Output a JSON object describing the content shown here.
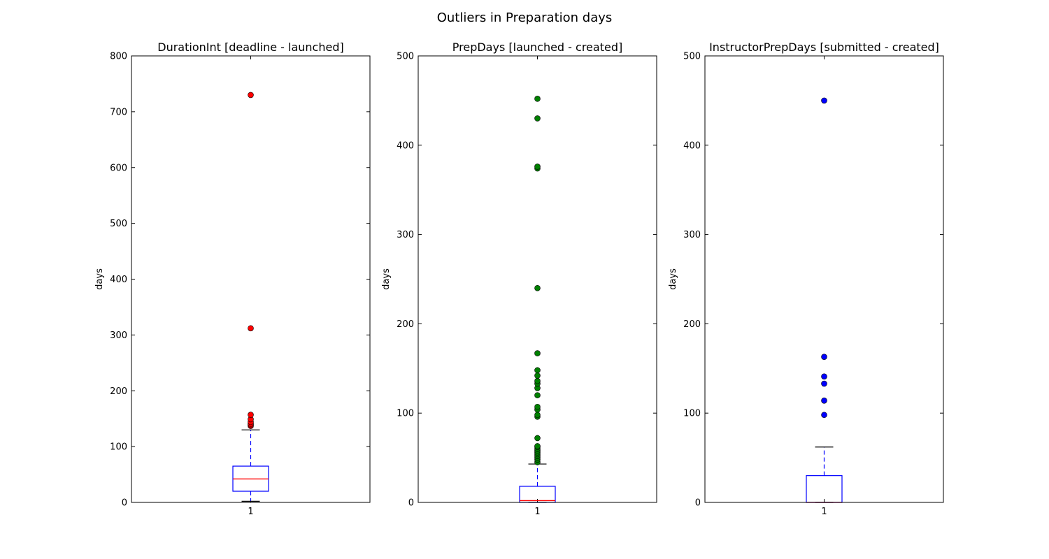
{
  "figure": {
    "suptitle": "Outliers in Preparation days"
  },
  "chart_data": [
    {
      "type": "box",
      "title": "DurationInt [deadline - launched]",
      "ylabel": "days",
      "xticks": [
        "1"
      ],
      "ylim": [
        0,
        800
      ],
      "yticks": [
        0,
        100,
        200,
        300,
        400,
        500,
        600,
        700,
        800
      ],
      "box": {
        "whisker_low": 2,
        "q1": 20,
        "median": 42,
        "q3": 65,
        "whisker_high": 130
      },
      "outliers": [
        137,
        139,
        141,
        144,
        149,
        157,
        312,
        730
      ],
      "outlier_color": "#ff0000"
    },
    {
      "type": "box",
      "title": "PrepDays [launched - created]",
      "ylabel": "days",
      "xticks": [
        "1"
      ],
      "ylim": [
        0,
        500
      ],
      "yticks": [
        0,
        100,
        200,
        300,
        400,
        500
      ],
      "box": {
        "whisker_low": 0,
        "q1": 0,
        "median": 2,
        "q3": 18,
        "whisker_high": 43
      },
      "outliers": [
        45,
        48,
        50,
        52,
        54,
        56,
        58,
        60,
        62,
        63,
        72,
        96,
        98,
        104,
        107,
        120,
        128,
        133,
        136,
        142,
        148,
        167,
        240,
        374,
        376,
        430,
        452
      ],
      "outlier_color": "#008000"
    },
    {
      "type": "box",
      "title": "InstructorPrepDays [submitted - created]",
      "ylabel": "days",
      "xticks": [
        "1"
      ],
      "ylim": [
        0,
        500
      ],
      "yticks": [
        0,
        100,
        200,
        300,
        400,
        500
      ],
      "box": {
        "whisker_low": 0,
        "q1": 0,
        "median": 0,
        "q3": 30,
        "whisker_high": 62
      },
      "outliers": [
        98,
        114,
        133,
        141,
        163,
        450
      ],
      "outlier_color": "#0000ff"
    }
  ],
  "style": {
    "box_color": "#0000ff",
    "median_color": "#ff0000",
    "whisker_cap_color": "#000000"
  }
}
